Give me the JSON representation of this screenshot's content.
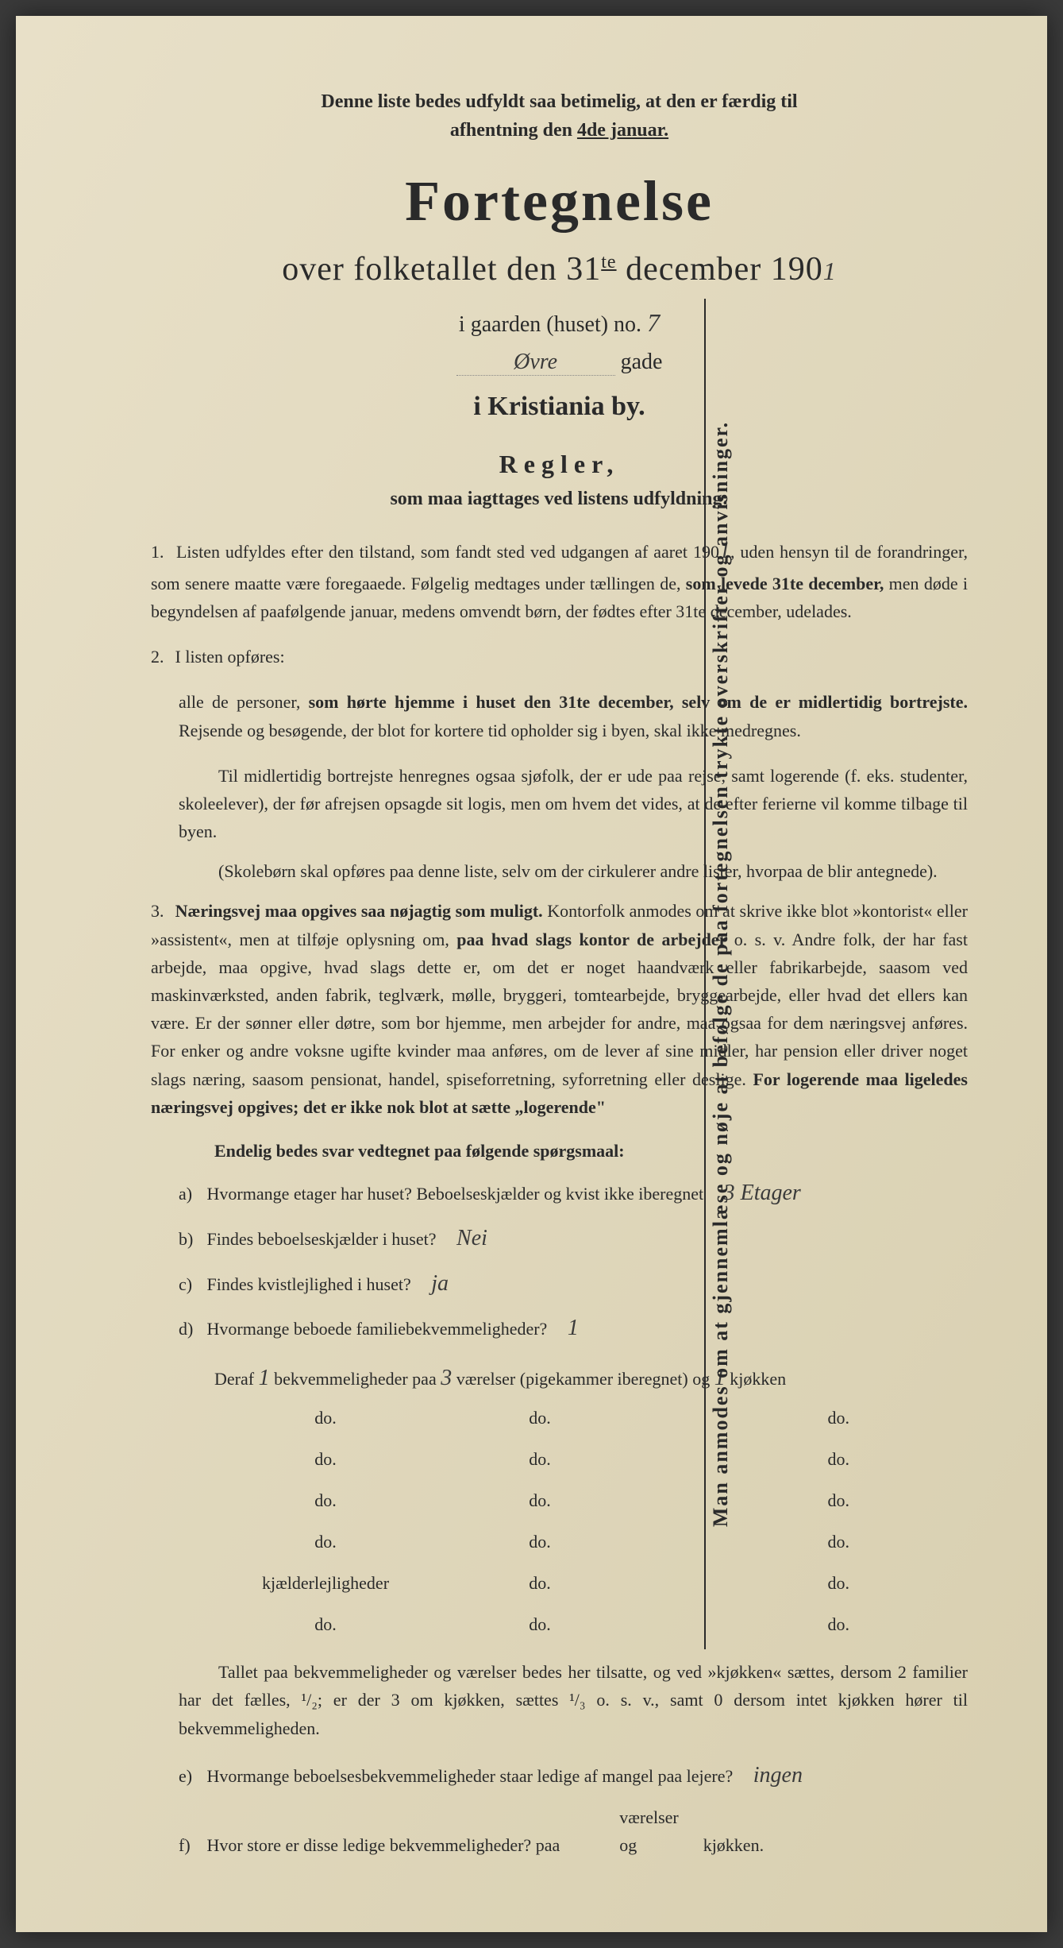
{
  "vertical_note": "Man anmodes om at gjennemlæse og nøje at befølge de paa fortegnelsen trykte overskrifter og anvisninger.",
  "top_note_line1": "Denne liste bedes udfyldt saa betimelig, at den er færdig til",
  "top_note_line2_prefix": "afhentning den ",
  "top_note_line2_underline": "4de januar.",
  "main_title": "Fortegnelse",
  "subtitle_prefix": "over folketallet den 31",
  "subtitle_super": "te",
  "subtitle_suffix": " december 190",
  "year_hand": "1",
  "house_line_prefix": "i gaarden (huset) no. ",
  "house_no": "7",
  "gade_hand": "Øvre",
  "gade_suffix": "gade",
  "city": "i Kristiania by.",
  "regler_title": "Regler,",
  "regler_sub": "som maa iagttages ved listens udfyldning:",
  "rule1_num": "1.",
  "rule1_text_a": "Listen udfyldes efter den tilstand, som fandt sted ved udgangen af aaret 190",
  "rule1_year": "1",
  "rule1_text_b": ", uden hensyn til de forandringer, som senere maatte være foregaaede. Følgelig medtages under tællingen de, ",
  "rule1_bold1": "som levede 31te december,",
  "rule1_text_c": " men døde i begyndelsen af paafølgende januar, medens omvendt børn, der fødtes efter 31te december, udelades.",
  "rule2_num": "2.",
  "rule2_text_a": "I listen opføres:",
  "rule2_para1_a": "alle de personer, ",
  "rule2_para1_bold": "som hørte hjemme i huset den 31te december, selv om de er midlertidig bortrejste.",
  "rule2_para1_b": " Rejsende og besøgende, der blot for kortere tid opholder sig i byen, skal ikke medregnes.",
  "rule2_para2": "Til midlertidig bortrejste henregnes ogsaa sjøfolk, der er ude paa rejse, samt logerende (f. eks. studenter, skoleelever), der før afrejsen opsagde sit logis, men om hvem det vides, at de efter ferierne vil komme tilbage til byen.",
  "rule2_para3_bold": "(Skolebørn skal opføres paa denne liste, selv om der cirkulerer andre lister, hvorpaa de blir antegnede).",
  "rule3_num": "3.",
  "rule3_bold1": "Næringsvej maa opgives saa nøjagtig som muligt.",
  "rule3_text_a": " Kontorfolk anmodes om at skrive ikke blot »kontorist« eller »assistent«, men at tilføje oplysning om, ",
  "rule3_bold2": "paa hvad slags kontor de arbejder",
  "rule3_text_b": " o. s. v. Andre folk, der har fast arbejde, maa opgive, hvad slags dette er, om det er noget haandværk eller fabrikarbejde, saasom ved maskinværksted, anden fabrik, teglværk, mølle, bryggeri, tomtearbejde, bryggearbejde, eller hvad det ellers kan være. Er der sønner eller døtre, som bor hjemme, men arbejder for andre, maa ogsaa for dem næringsvej anføres. For enker og andre voksne ugifte kvinder maa anføres, om de lever af sine midler, har pension eller driver noget slags næring, saasom pensionat, handel, spiseforretning, syforretning eller deslige. ",
  "rule3_bold3": "For logerende maa ligeledes næringsvej opgives; det er ikke nok blot at sætte „logerende\"",
  "questions_header": "Endelig bedes svar vedtegnet paa følgende spørgsmaal:",
  "qa_label": "a)",
  "qa_text": "Hvormange ",
  "qa_bold": "etager",
  "qa_text2": " har huset? Beboelseskjælder og kvist ",
  "qa_bold2": "ikke iberegnet",
  "qa_answer": "3 Etager",
  "qb_label": "b)",
  "qb_text": "Findes beboelseskjælder i huset?",
  "qb_answer": "Nei",
  "qc_label": "c)",
  "qc_text": "Findes kvistlejlighed i huset?",
  "qc_answer": "ja",
  "qd_label": "d)",
  "qd_text": "Hvormange ",
  "qd_bold": "beboede",
  "qd_text2": " familiebekvemmeligheder?",
  "qd_answer": "1",
  "table_header_a": "Deraf ",
  "table_header_val1": "1",
  "table_header_b": " bekvemmeligheder paa ",
  "table_header_val2": "3",
  "table_header_c": " værelser (pigekammer iberegnet) og ",
  "table_header_val3": "1",
  "table_header_d": " kjøkken",
  "do_text": "do.",
  "kjælder": "kjælderlejligheder",
  "bottom_para_text": "Tallet paa bekvemmeligheder og værelser bedes her tilsatte, og ved »kjøkken« sættes, dersom 2 familier har det fælles, ¹/₂; er der 3 om kjøkken, sættes ¹/₃ o. s. v., samt 0 dersom intet kjøkken hører til bekvemmeligheden.",
  "qe_label": "e)",
  "qe_text": "Hvormange beboelsesbekvemmeligheder staar ledige af mangel paa lejere?",
  "qe_answer": "ingen",
  "qf_label": "f)",
  "qf_text_a": "Hvor store er disse ledige bekvemmeligheder?",
  "qf_text_b": "paa",
  "qf_text_c": "værelser og",
  "qf_text_d": "kjøkken."
}
